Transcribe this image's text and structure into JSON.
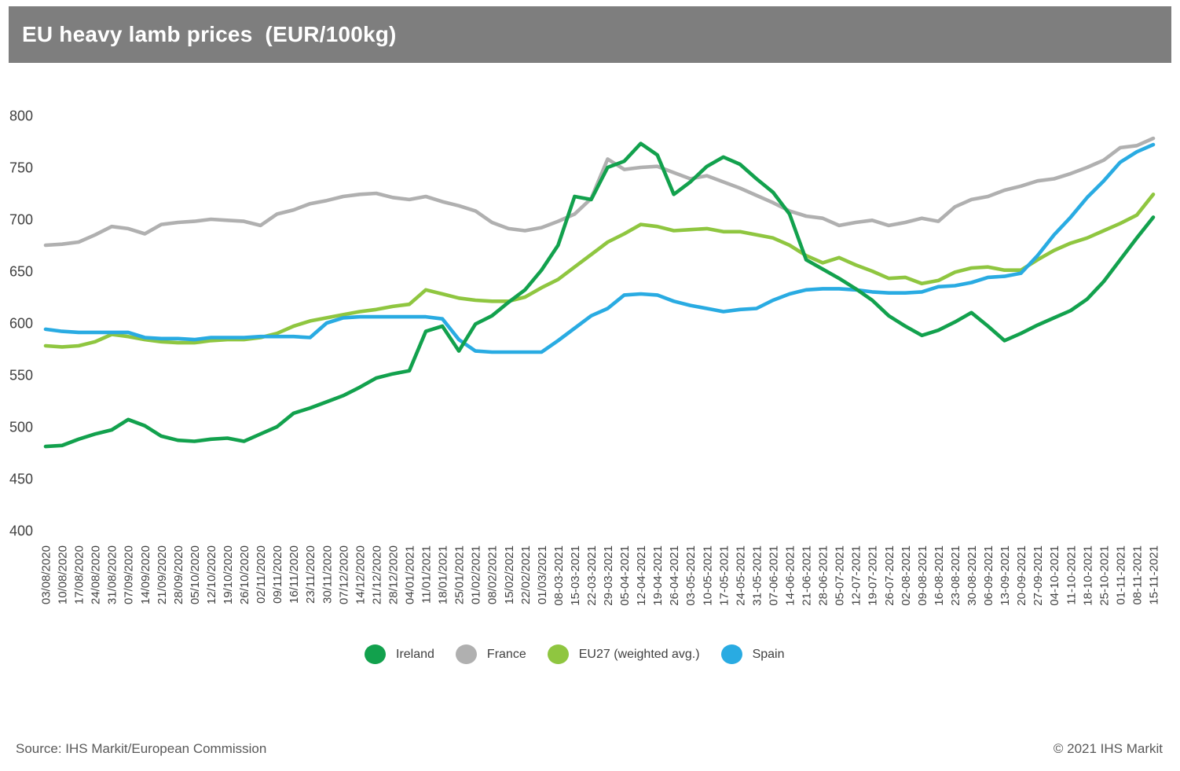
{
  "title": "EU heavy lamb prices  (EUR/100kg)",
  "footer": {
    "source": "Source: IHS Markit/European Commission",
    "copyright": "© 2021 IHS Markit"
  },
  "colors": {
    "title_bar": "#7e7e7e",
    "title_text": "#ffffff",
    "axis_text": "#404040",
    "footer_text": "#595959"
  },
  "legend": {
    "items": [
      {
        "label": "Ireland",
        "color": "#12a14d"
      },
      {
        "label": "France",
        "color": "#b0b0b0"
      },
      {
        "label": "EU27 (weighted avg.)",
        "color": "#8fc640"
      },
      {
        "label": "Spain",
        "color": "#29abe2"
      }
    ]
  },
  "chart_data": {
    "type": "line",
    "title": "EU heavy lamb prices (EUR/100kg)",
    "ylabel": "EUR/100kg",
    "ylim": [
      400,
      800
    ],
    "ytick_step": 50,
    "grid": false,
    "legend_position": "bottom",
    "x": [
      "03/08/2020",
      "10/08/2020",
      "17/08/2020",
      "24/08/2020",
      "31/08/2020",
      "07/09/2020",
      "14/09/2020",
      "21/09/2020",
      "28/09/2020",
      "05/10/2020",
      "12/10/2020",
      "19/10/2020",
      "26/10/2020",
      "02/11/2020",
      "09/11/2020",
      "16/11/2020",
      "23/11/2020",
      "30/11/2020",
      "07/12/2020",
      "14/12/2020",
      "21/12/2020",
      "28/12/2020",
      "04/01/2021",
      "11/01/2021",
      "18/01/2021",
      "25/01/2021",
      "01/02/2021",
      "08/02/2021",
      "15/02/2021",
      "22/02/2021",
      "01/03/2021",
      "08-03-2021",
      "15-03-2021",
      "22-03-2021",
      "29-03-2021",
      "05-04-2021",
      "12-04-2021",
      "19-04-2021",
      "26-04-2021",
      "03-05-2021",
      "10-05-2021",
      "17-05-2021",
      "24-05-2021",
      "31-05-2021",
      "07-06-2021",
      "14-06-2021",
      "21-06-2021",
      "28-06-2021",
      "05-07-2021",
      "12-07-2021",
      "19-07-2021",
      "26-07-2021",
      "02-08-2021",
      "09-08-2021",
      "16-08-2021",
      "23-08-2021",
      "30-08-2021",
      "06-09-2021",
      "13-09-2021",
      "20-09-2021",
      "27-09-2021",
      "04-10-2021",
      "11-10-2021",
      "18-10-2021",
      "25-10-2021",
      "01-11-2021",
      "08-11-2021",
      "15-11-2021"
    ],
    "series": [
      {
        "name": "Ireland",
        "color": "#12a14d",
        "zorder": 4,
        "values": [
          481,
          482,
          488,
          493,
          497,
          507,
          501,
          491,
          487,
          486,
          488,
          489,
          486,
          493,
          500,
          513,
          518,
          524,
          530,
          538,
          547,
          551,
          554,
          592,
          597,
          573,
          599,
          607,
          620,
          632,
          651,
          675,
          722,
          719,
          750,
          756,
          773,
          762,
          724,
          736,
          751,
          760,
          753,
          739,
          726,
          705,
          661,
          652,
          643,
          633,
          622,
          607,
          597,
          588,
          593,
          601,
          610,
          597,
          583,
          590,
          598,
          605,
          612,
          623,
          640,
          661,
          682,
          702
        ]
      },
      {
        "name": "France",
        "color": "#b0b0b0",
        "zorder": 1,
        "values": [
          675,
          676,
          678,
          685,
          693,
          691,
          686,
          695,
          697,
          698,
          700,
          699,
          698,
          694,
          705,
          709,
          715,
          718,
          722,
          724,
          725,
          721,
          719,
          722,
          717,
          713,
          708,
          697,
          691,
          689,
          692,
          698,
          705,
          720,
          758,
          748,
          750,
          751,
          745,
          739,
          742,
          736,
          730,
          723,
          716,
          708,
          703,
          701,
          694,
          697,
          699,
          694,
          697,
          701,
          698,
          712,
          719,
          722,
          728,
          732,
          737,
          739,
          744,
          750,
          757,
          769,
          771,
          778
        ]
      },
      {
        "name": "EU27 (weighted avg.)",
        "color": "#8fc640",
        "zorder": 2,
        "values": [
          578,
          577,
          578,
          582,
          589,
          587,
          584,
          582,
          581,
          581,
          583,
          584,
          584,
          586,
          590,
          597,
          602,
          605,
          608,
          611,
          613,
          616,
          618,
          632,
          628,
          624,
          622,
          621,
          621,
          625,
          634,
          642,
          654,
          666,
          678,
          686,
          695,
          693,
          689,
          690,
          691,
          688,
          688,
          685,
          682,
          675,
          665,
          658,
          663,
          656,
          650,
          643,
          644,
          638,
          641,
          649,
          653,
          654,
          651,
          651,
          661,
          670,
          677,
          682,
          689,
          696,
          704,
          724
        ]
      },
      {
        "name": "Spain",
        "color": "#29abe2",
        "zorder": 3,
        "values": [
          594,
          592,
          591,
          591,
          591,
          591,
          586,
          585,
          585,
          584,
          586,
          586,
          586,
          587,
          587,
          587,
          586,
          600,
          605,
          606,
          606,
          606,
          606,
          606,
          604,
          584,
          573,
          572,
          572,
          572,
          572,
          583,
          595,
          607,
          614,
          627,
          628,
          627,
          621,
          617,
          614,
          611,
          613,
          614,
          622,
          628,
          632,
          633,
          633,
          632,
          630,
          629,
          629,
          630,
          635,
          636,
          639,
          644,
          645,
          648,
          665,
          685,
          702,
          721,
          737,
          755,
          765,
          772
        ]
      }
    ]
  }
}
